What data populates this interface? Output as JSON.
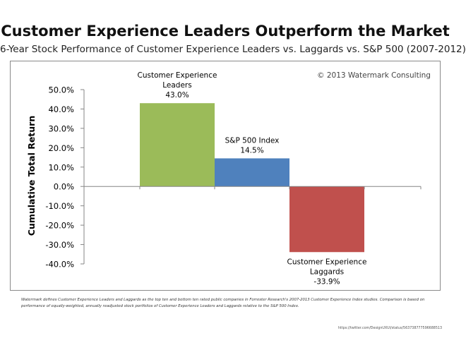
{
  "header": {
    "title": "Customer Experience Leaders Outperform the Market",
    "subtitle": "6-Year Stock Performance of Customer Experience Leaders vs. Laggards vs. S&P 500 (2007-2012)"
  },
  "footer": {
    "footnote": "Watermark defines Customer Experience Leaders and Laggards as the top ten and bottom ten rated public companies in Forrester Research's 2007-2013  Customer Experience Index studies. Comparison is based on performance of equally-weighted, annually readjusted stock portfolios of Customer Experience Leaders and Laggards relative to the S&P 500 Index.",
    "source_url": "https://twitter.com/DesignUXUI/status/563738777596688513"
  },
  "colors": {
    "leaders": "#9bbb59",
    "sp500": "#4f81bd",
    "laggards": "#c0504d",
    "axis": "#868686"
  },
  "chart_data": {
    "type": "bar",
    "title": "Customer Experience Leaders Outperform the Market",
    "ylabel": "Cumulative Total Return",
    "xlabel": "",
    "ylim": [
      -40,
      50
    ],
    "yticks": [
      {
        "value": 50,
        "label": "50.0%"
      },
      {
        "value": 40,
        "label": "40.0%"
      },
      {
        "value": 30,
        "label": "30.0%"
      },
      {
        "value": 20,
        "label": "20.0%"
      },
      {
        "value": 10,
        "label": "10.0%"
      },
      {
        "value": 0,
        "label": "0.0%"
      },
      {
        "value": -10,
        "label": "-10.0%"
      },
      {
        "value": -20,
        "label": "-20.0%"
      },
      {
        "value": -30,
        "label": "-30.0%"
      },
      {
        "value": -40,
        "label": "-40.0%"
      }
    ],
    "grid": false,
    "legend": "none",
    "annotation": "© 2013 Watermark Consulting",
    "bars": [
      {
        "name": "leaders",
        "label_lines": [
          "Customer Experience",
          "Leaders"
        ],
        "value": 43.0,
        "value_label": "43.0%"
      },
      {
        "name": "sp500",
        "label_lines": [
          "S&P 500 Index"
        ],
        "value": 14.5,
        "value_label": "14.5%"
      },
      {
        "name": "laggards",
        "label_lines": [
          "Customer Experience",
          "Laggards"
        ],
        "value": -33.9,
        "value_label": "-33.9%"
      }
    ]
  }
}
